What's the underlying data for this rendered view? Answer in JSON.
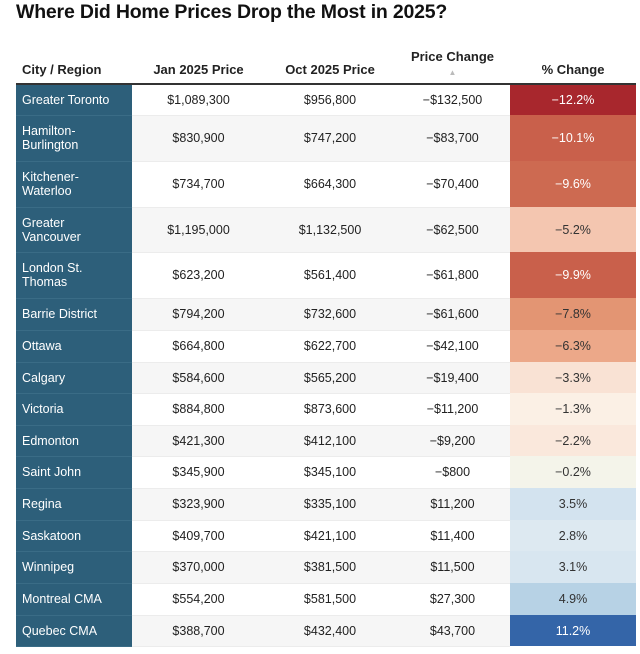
{
  "title": "Where Did Home Prices Drop the Most in 2025?",
  "columns": {
    "city": "City / Region",
    "jan": "Jan 2025 Price",
    "oct": "Oct 2025 Price",
    "change": "Price Change",
    "change_sort_icon": "▲",
    "pct": "% Change"
  },
  "colors": {
    "city_cell": "#2d5f7a",
    "negative_max": "#a8272d",
    "positive_max": "#3465a8"
  },
  "rows": [
    {
      "city": "Greater Toronto",
      "jan": "$1,089,300",
      "oct": "$956,800",
      "change": "−$132,500",
      "pct": "−12.2%",
      "color": "#a8272d",
      "light": true
    },
    {
      "city": "Hamilton-\nBurlington",
      "jan": "$830,900",
      "oct": "$747,200",
      "change": "−$83,700",
      "pct": "−10.1%",
      "color": "#c9604b",
      "light": true
    },
    {
      "city": "Kitchener-\nWaterloo",
      "jan": "$734,700",
      "oct": "$664,300",
      "change": "−$70,400",
      "pct": "−9.6%",
      "color": "#cd6a51",
      "light": true
    },
    {
      "city": "Greater\nVancouver",
      "jan": "$1,195,000",
      "oct": "$1,132,500",
      "change": "−$62,500",
      "pct": "−5.2%",
      "color": "#f4c6b0",
      "light": false
    },
    {
      "city": "London St.\nThomas",
      "jan": "$623,200",
      "oct": "$561,400",
      "change": "−$61,800",
      "pct": "−9.9%",
      "color": "#c9604b",
      "light": true
    },
    {
      "city": "Barrie District",
      "jan": "$794,200",
      "oct": "$732,600",
      "change": "−$61,600",
      "pct": "−7.8%",
      "color": "#e39573",
      "light": false
    },
    {
      "city": "Ottawa",
      "jan": "$664,800",
      "oct": "$622,700",
      "change": "−$42,100",
      "pct": "−6.3%",
      "color": "#eca889",
      "light": false
    },
    {
      "city": "Calgary",
      "jan": "$584,600",
      "oct": "$565,200",
      "change": "−$19,400",
      "pct": "−3.3%",
      "color": "#f9e2d4",
      "light": false
    },
    {
      "city": "Victoria",
      "jan": "$884,800",
      "oct": "$873,600",
      "change": "−$11,200",
      "pct": "−1.3%",
      "color": "#fbf0e5",
      "light": false
    },
    {
      "city": "Edmonton",
      "jan": "$421,300",
      "oct": "$412,100",
      "change": "−$9,200",
      "pct": "−2.2%",
      "color": "#fae8dc",
      "light": false
    },
    {
      "city": "Saint John",
      "jan": "$345,900",
      "oct": "$345,100",
      "change": "−$800",
      "pct": "−0.2%",
      "color": "#f4f4ea",
      "light": false
    },
    {
      "city": "Regina",
      "jan": "$323,900",
      "oct": "$335,100",
      "change": "$11,200",
      "pct": "3.5%",
      "color": "#d3e3ef",
      "light": false
    },
    {
      "city": "Saskatoon",
      "jan": "$409,700",
      "oct": "$421,100",
      "change": "$11,400",
      "pct": "2.8%",
      "color": "#dde9f1",
      "light": false
    },
    {
      "city": "Winnipeg",
      "jan": "$370,000",
      "oct": "$381,500",
      "change": "$11,500",
      "pct": "3.1%",
      "color": "#d8e6f0",
      "light": false
    },
    {
      "city": "Montreal CMA",
      "jan": "$554,200",
      "oct": "$581,500",
      "change": "$27,300",
      "pct": "4.9%",
      "color": "#b7d2e5",
      "light": false
    },
    {
      "city": "Quebec CMA",
      "jan": "$388,700",
      "oct": "$432,400",
      "change": "$43,700",
      "pct": "11.2%",
      "color": "#3465a8",
      "light": true
    }
  ]
}
